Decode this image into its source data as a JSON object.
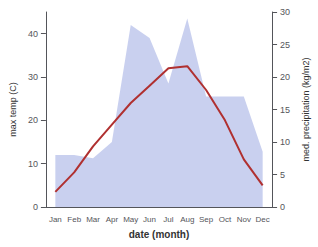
{
  "chart_data": {
    "type": "line",
    "categories": [
      "Jan",
      "Feb",
      "Mar",
      "Apr",
      "May",
      "Jun",
      "Jul",
      "Aug",
      "Sep",
      "Oct",
      "Nov",
      "Dec"
    ],
    "series": [
      {
        "type": "area",
        "axis": "y2",
        "color": "#c0c8ec",
        "values": [
          8.0,
          8.0,
          7.5,
          10.0,
          28.0,
          26.0,
          19.0,
          29.0,
          17.0,
          17.0,
          17.0,
          8.5
        ]
      },
      {
        "type": "line",
        "color": "#b03030",
        "values": [
          3.5,
          8.0,
          14.0,
          19.0,
          24.0,
          28.0,
          32.0,
          32.5,
          27.0,
          20.0,
          11.0,
          5.0
        ]
      }
    ],
    "xlabel": "date (month)",
    "ylabel": "max temp (C)",
    "y2label": "med. precipitation (kg/m2)",
    "ylim": [
      0,
      45
    ],
    "yticks": [
      0,
      10,
      20,
      30,
      40
    ],
    "y2lim": [
      0,
      30
    ],
    "y2ticks": [
      0,
      5,
      10,
      15,
      20,
      25,
      30
    ],
    "grid": false
  }
}
